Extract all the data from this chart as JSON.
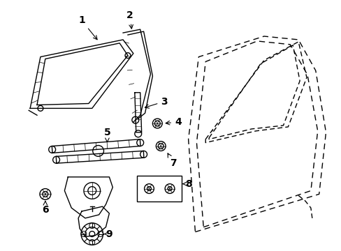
{
  "background_color": "#ffffff",
  "line_color": "#000000",
  "figsize": [
    4.89,
    3.6
  ],
  "dpi": 100,
  "label_fontsize": 10
}
